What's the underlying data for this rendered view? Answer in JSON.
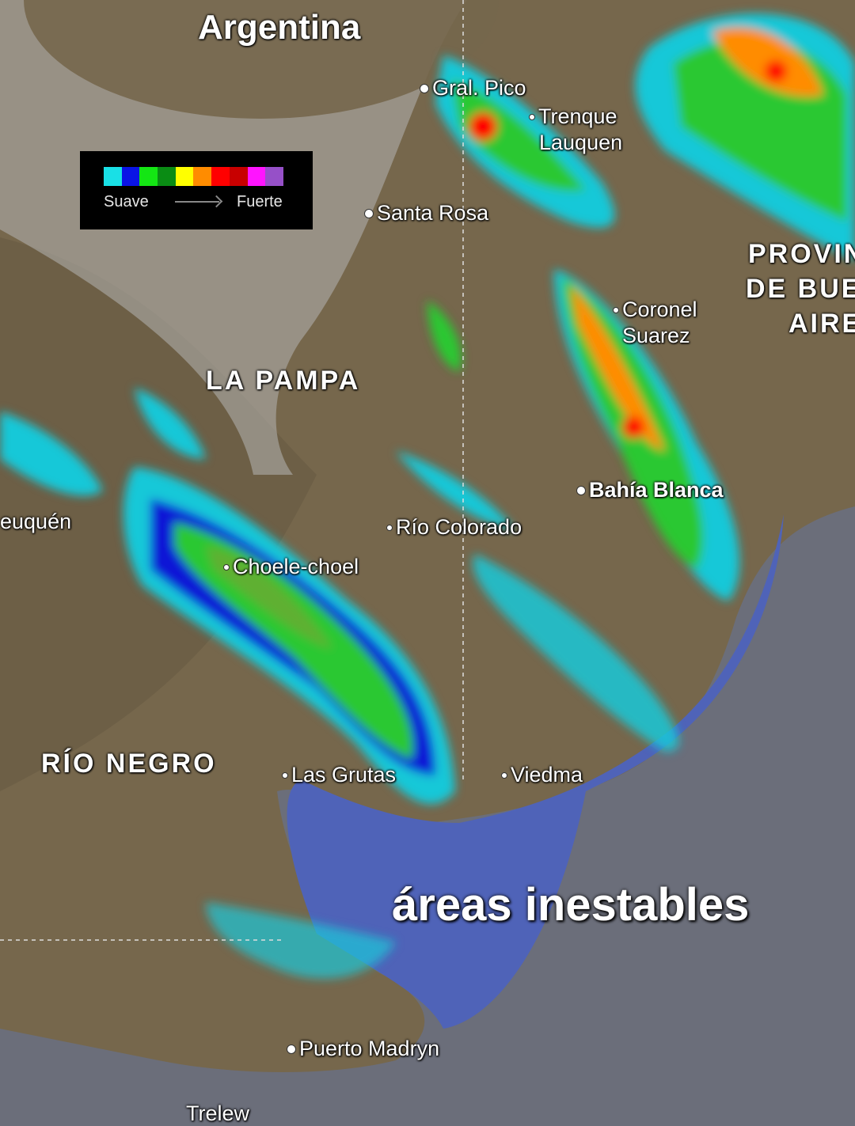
{
  "map": {
    "title": "Argentina",
    "regions": [
      "LA PAMPA",
      "RÍO NEGRO",
      "PROVIN",
      "DE BUE",
      "AIRE"
    ],
    "cities": [
      "Gral. Pico",
      "Trenque",
      "Lauquen",
      "Santa Rosa",
      "Coronel",
      "Suarez",
      "Bahía Blanca",
      "Río Colorado",
      "Choele-choel",
      "euquén",
      "Las Grutas",
      "Viedma",
      "Puerto Madryn",
      "Trelew"
    ],
    "colors": {
      "land": "#7a6a4f",
      "sea": "#4f63b8",
      "ocean": "#6b6e7a",
      "coverage": "#a8a8a8"
    }
  },
  "legend": {
    "colors": [
      "#19e0e6",
      "#0a14e6",
      "#14e614",
      "#0a8c14",
      "#ffff00",
      "#ff8c00",
      "#ff0000",
      "#c80000",
      "#ff14ff",
      "#9650c8"
    ],
    "low_label": "Suave",
    "high_label": "Fuerte"
  },
  "caption": "áreas inestables"
}
